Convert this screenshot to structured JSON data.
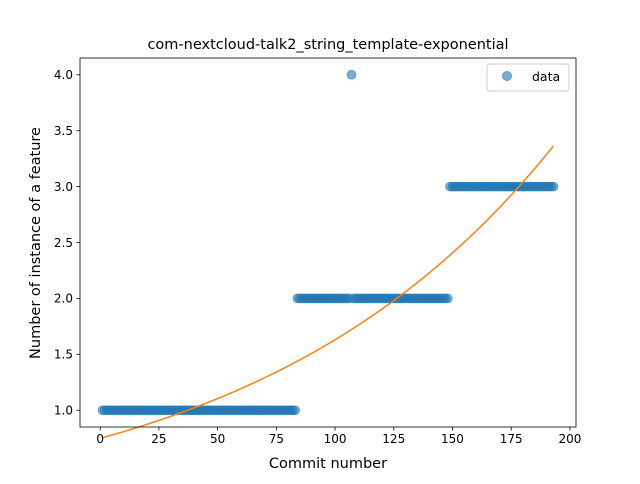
{
  "chart_data": {
    "type": "scatter",
    "title": "com-nextcloud-talk2_string_template-exponential",
    "xlabel": "Commit number",
    "ylabel": "Number of instance of a feature",
    "xlim": [
      -8.6,
      202.6
    ],
    "ylim": [
      0.85,
      4.15
    ],
    "xticks": [
      0,
      25,
      50,
      75,
      100,
      125,
      150,
      175,
      200
    ],
    "yticks": [
      1.0,
      1.5,
      2.0,
      2.5,
      3.0,
      3.5,
      4.0
    ],
    "xtick_labels": [
      "0",
      "25",
      "50",
      "75",
      "100",
      "125",
      "150",
      "175",
      "200"
    ],
    "ytick_labels": [
      "1.0",
      "1.5",
      "2.0",
      "2.5",
      "3.0",
      "3.5",
      "4.0"
    ],
    "grid": false,
    "legend": {
      "position": "top-right",
      "entries": [
        {
          "label": "data",
          "color": "#1f77b4",
          "marker": "circle"
        }
      ]
    },
    "series": [
      {
        "name": "data",
        "kind": "scatter",
        "color": "#1f77b4",
        "alpha": 0.6,
        "segments": [
          {
            "x_start": 1,
            "x_end": 83,
            "y": 1
          },
          {
            "x_start": 84,
            "x_end": 106,
            "y": 2
          },
          {
            "x_start": 108,
            "x_end": 148,
            "y": 2
          },
          {
            "x_start": 149,
            "x_end": 193,
            "y": 3
          }
        ],
        "points": [
          {
            "x": 107,
            "y": 4
          }
        ]
      },
      {
        "kind": "line",
        "color": "#ff7f0e",
        "model": "exponential",
        "a": 0.748,
        "b": 0.00779,
        "x_start": 1,
        "x_end": 193,
        "samples": [
          {
            "x": 1,
            "y": 0.75
          },
          {
            "x": 50,
            "y": 1.1
          },
          {
            "x": 100,
            "y": 1.62
          },
          {
            "x": 150,
            "y": 2.4
          },
          {
            "x": 175,
            "y": 2.92
          },
          {
            "x": 193,
            "y": 3.35
          }
        ]
      }
    ]
  }
}
